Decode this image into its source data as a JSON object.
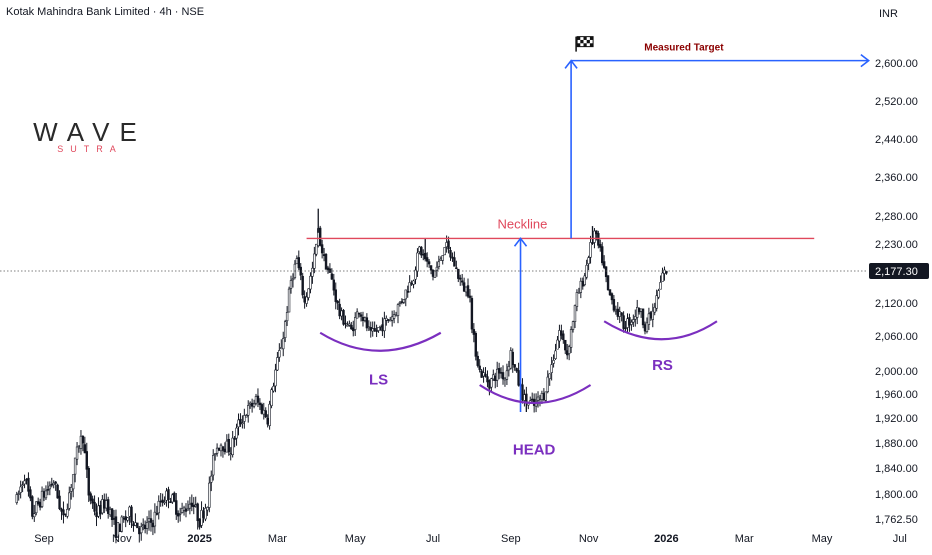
{
  "header": {
    "title": "Kotak Mahindra Bank Limited · 4h · NSE",
    "currency": "INR"
  },
  "logo": {
    "main": "WAVE",
    "sub": "SUTRA"
  },
  "colors": {
    "candle": "#131722",
    "neckline": "#e0485c",
    "arrow": "#2962ff",
    "arc": "#7b2fbf",
    "target_label": "#8b0000",
    "price_badge": "#131722",
    "logo_sub": "#e0485c"
  },
  "chart_data": {
    "type": "candlestick",
    "symbol": "Kotak Mahindra Bank Limited",
    "interval": "4h",
    "exchange": "NSE",
    "ylim": [
      1745,
      2640
    ],
    "y_ticks": [
      {
        "value": 2600,
        "label": "2,600.00"
      },
      {
        "value": 2520,
        "label": "2,520.00"
      },
      {
        "value": 2440,
        "label": "2,440.00"
      },
      {
        "value": 2360,
        "label": "2,360.00"
      },
      {
        "value": 2280,
        "label": "2,280.00"
      },
      {
        "value": 2230,
        "label": "2,230.00"
      },
      {
        "value": 2120,
        "label": "2,120.00"
      },
      {
        "value": 2060,
        "label": "2,060.00"
      },
      {
        "value": 2000,
        "label": "2,000.00"
      },
      {
        "value": 1960,
        "label": "1,960.00"
      },
      {
        "value": 1920,
        "label": "1,920.00"
      },
      {
        "value": 1880,
        "label": "1,880.00"
      },
      {
        "value": 1840,
        "label": "1,840.00"
      },
      {
        "value": 1800,
        "label": "1,800.00"
      },
      {
        "value": 1762.5,
        "label": "1,762.50"
      }
    ],
    "x_ticks": [
      {
        "month": 0,
        "label": "Sep",
        "bold": false
      },
      {
        "month": 2,
        "label": "Nov",
        "bold": false
      },
      {
        "month": 4,
        "label": "2025",
        "bold": true
      },
      {
        "month": 6,
        "label": "Mar",
        "bold": false
      },
      {
        "month": 8,
        "label": "May",
        "bold": false
      },
      {
        "month": 10,
        "label": "Jul",
        "bold": false
      },
      {
        "month": 12,
        "label": "Sep",
        "bold": false
      },
      {
        "month": 14,
        "label": "Nov",
        "bold": false
      },
      {
        "month": 16,
        "label": "2026",
        "bold": true
      },
      {
        "month": 18,
        "label": "Mar",
        "bold": false
      },
      {
        "month": 20,
        "label": "May",
        "bold": false
      },
      {
        "month": 22,
        "label": "Jul",
        "bold": false
      }
    ],
    "last_price": {
      "value": 2177.3,
      "label": "2,177.30"
    },
    "price_path": [
      [
        -0.7,
        1790
      ],
      [
        -0.5,
        1830
      ],
      [
        -0.3,
        1770
      ],
      [
        0.0,
        1800
      ],
      [
        0.25,
        1820
      ],
      [
        0.5,
        1760
      ],
      [
        0.75,
        1830
      ],
      [
        0.9,
        1880
      ],
      [
        1.0,
        1890
      ],
      [
        1.15,
        1800
      ],
      [
        1.35,
        1770
      ],
      [
        1.6,
        1790
      ],
      [
        1.85,
        1745
      ],
      [
        2.2,
        1770
      ],
      [
        2.5,
        1745
      ],
      [
        2.8,
        1760
      ],
      [
        3.0,
        1790
      ],
      [
        3.2,
        1800
      ],
      [
        3.5,
        1770
      ],
      [
        3.8,
        1790
      ],
      [
        4.0,
        1760
      ],
      [
        4.2,
        1790
      ],
      [
        4.4,
        1870
      ],
      [
        4.55,
        1880
      ],
      [
        4.8,
        1870
      ],
      [
        5.0,
        1910
      ],
      [
        5.2,
        1930
      ],
      [
        5.45,
        1950
      ],
      [
        5.75,
        1920
      ],
      [
        5.95,
        2000
      ],
      [
        6.15,
        2060
      ],
      [
        6.35,
        2160
      ],
      [
        6.5,
        2200
      ],
      [
        6.7,
        2120
      ],
      [
        6.9,
        2180
      ],
      [
        7.05,
        2250
      ],
      [
        7.2,
        2200
      ],
      [
        7.4,
        2160
      ],
      [
        7.6,
        2100
      ],
      [
        7.9,
        2070
      ],
      [
        8.1,
        2110
      ],
      [
        8.4,
        2060
      ],
      [
        8.7,
        2080
      ],
      [
        9.0,
        2100
      ],
      [
        9.3,
        2140
      ],
      [
        9.5,
        2170
      ],
      [
        9.65,
        2220
      ],
      [
        9.8,
        2200
      ],
      [
        10.0,
        2170
      ],
      [
        10.15,
        2190
      ],
      [
        10.3,
        2230
      ],
      [
        10.5,
        2200
      ],
      [
        10.75,
        2150
      ],
      [
        10.95,
        2140
      ],
      [
        11.0,
        2070
      ],
      [
        11.2,
        2000
      ],
      [
        11.45,
        1980
      ],
      [
        11.7,
        2000
      ],
      [
        11.85,
        1990
      ],
      [
        12.0,
        2030
      ],
      [
        12.15,
        1990
      ],
      [
        12.35,
        1950
      ],
      [
        12.6,
        1940
      ],
      [
        12.85,
        1960
      ],
      [
        13.05,
        2010
      ],
      [
        13.25,
        2070
      ],
      [
        13.45,
        2030
      ],
      [
        13.7,
        2130
      ],
      [
        13.9,
        2170
      ],
      [
        14.0,
        2210
      ],
      [
        14.15,
        2250
      ],
      [
        14.35,
        2200
      ],
      [
        14.5,
        2140
      ],
      [
        14.7,
        2110
      ],
      [
        14.9,
        2080
      ],
      [
        15.1,
        2090
      ],
      [
        15.3,
        2110
      ],
      [
        15.45,
        2080
      ],
      [
        15.65,
        2100
      ],
      [
        15.8,
        2140
      ],
      [
        15.9,
        2170
      ],
      [
        16.0,
        2177.3
      ]
    ],
    "highlights": [
      {
        "month": 7.05,
        "high": 2295
      },
      {
        "month": 9.8,
        "high": 2240
      },
      {
        "month": 12.4,
        "low": 1930
      },
      {
        "month": 14.1,
        "high": 2262
      }
    ],
    "neckline": {
      "label": "Neckline",
      "price": 2240,
      "from_month": 6.75,
      "to_month": 19.8
    },
    "measured_target": {
      "label": "Measured Target",
      "price": 2605,
      "from_month": 13.55,
      "to_month": 21.2
    },
    "arrow_head_depth": {
      "month": 12.25,
      "from": 1930,
      "to": 2240
    },
    "arrow_projection": {
      "month": 13.55,
      "from": 2240,
      "to": 2605
    },
    "patterns": [
      {
        "label": "LS",
        "from_month": 7.1,
        "to_month": 10.2,
        "center_month": 8.6,
        "price": 2045,
        "label_price": 1985
      },
      {
        "label": "HEAD",
        "from_month": 11.2,
        "to_month": 14.05,
        "center_month": 12.6,
        "price": 1955,
        "label_price": 1870
      },
      {
        "label": "RS",
        "from_month": 14.4,
        "to_month": 17.3,
        "center_month": 15.9,
        "price": 2065,
        "label_price": 2010
      }
    ]
  }
}
